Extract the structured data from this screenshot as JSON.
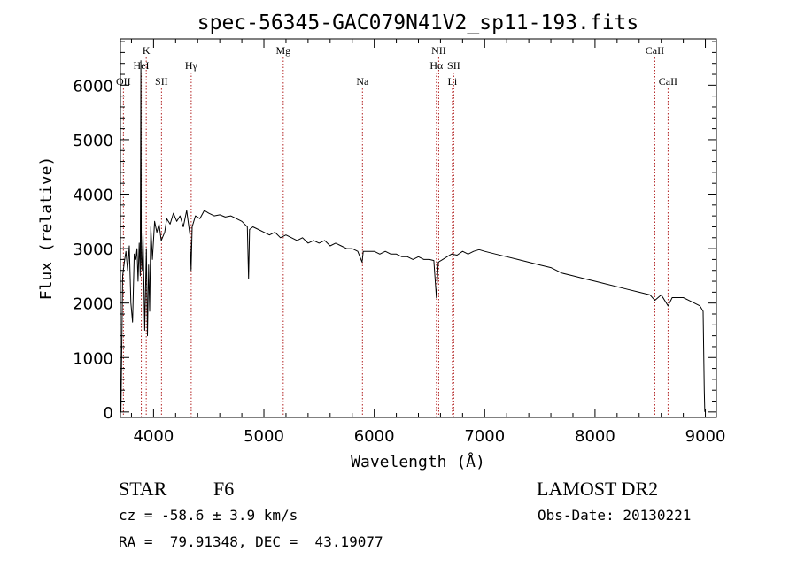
{
  "chart_data": {
    "type": "line",
    "title": "spec-56345-GAC079N41V2_sp11-193.fits",
    "xlabel": "Wavelength (Å)",
    "ylabel": "Flux (relative)",
    "xlim": [
      3700,
      9100
    ],
    "ylim": [
      -100,
      6850
    ],
    "xticks": [
      4000,
      5000,
      6000,
      7000,
      8000,
      9000
    ],
    "yticks": [
      0,
      1000,
      2000,
      3000,
      4000,
      5000,
      6000
    ],
    "grid": false,
    "series": [
      {
        "x": [
          3700,
          3705,
          3720,
          3735,
          3750,
          3765,
          3780,
          3795,
          3810,
          3825,
          3840,
          3850,
          3860,
          3870,
          3880,
          3885,
          3889,
          3895,
          3905,
          3920,
          3935,
          3945,
          3955,
          3965,
          3975,
          3990,
          4010,
          4030,
          4050,
          4070,
          4101,
          4120,
          4150,
          4180,
          4210,
          4240,
          4270,
          4300,
          4330,
          4340,
          4350,
          4380,
          4420,
          4460,
          4500,
          4550,
          4600,
          4650,
          4700,
          4750,
          4800,
          4850,
          4861,
          4870,
          4900,
          4950,
          5000,
          5050,
          5100,
          5150,
          5200,
          5250,
          5300,
          5350,
          5400,
          5450,
          5500,
          5550,
          5600,
          5650,
          5700,
          5750,
          5800,
          5850,
          5890,
          5900,
          5950,
          6000,
          6050,
          6100,
          6150,
          6200,
          6250,
          6300,
          6350,
          6400,
          6450,
          6500,
          6540,
          6563,
          6580,
          6620,
          6660,
          6700,
          6750,
          6800,
          6850,
          6900,
          6950,
          7000,
          7100,
          7200,
          7300,
          7400,
          7500,
          7600,
          7700,
          7800,
          7900,
          8000,
          8100,
          8200,
          8300,
          8400,
          8498,
          8542,
          8600,
          8662,
          8700,
          8800,
          8850,
          8900,
          8950,
          8980,
          8990,
          8995
        ],
        "y": [
          200,
          0,
          2500,
          2750,
          2950,
          2600,
          3050,
          2000,
          1650,
          2900,
          2800,
          3000,
          2400,
          3100,
          2500,
          6450,
          2800,
          2600,
          3300,
          1500,
          3000,
          1400,
          2700,
          1850,
          3400,
          2800,
          3500,
          3300,
          3450,
          3150,
          3300,
          3550,
          3450,
          3650,
          3500,
          3600,
          3400,
          3700,
          3250,
          2600,
          3400,
          3600,
          3550,
          3700,
          3650,
          3600,
          3620,
          3580,
          3600,
          3550,
          3500,
          3400,
          2450,
          3350,
          3400,
          3350,
          3300,
          3250,
          3300,
          3200,
          3250,
          3200,
          3150,
          3200,
          3100,
          3150,
          3100,
          3150,
          3050,
          3100,
          3050,
          3000,
          3000,
          2950,
          2750,
          2950,
          2950,
          2950,
          2900,
          2950,
          2900,
          2900,
          2850,
          2850,
          2800,
          2850,
          2800,
          2800,
          2780,
          2100,
          2750,
          2800,
          2850,
          2900,
          2880,
          2950,
          2900,
          2950,
          2980,
          2950,
          2900,
          2850,
          2800,
          2750,
          2700,
          2650,
          2550,
          2500,
          2450,
          2400,
          2350,
          2300,
          2250,
          2200,
          2150,
          2050,
          2150,
          1950,
          2100,
          2100,
          2050,
          2000,
          1950,
          1850,
          400,
          0
        ]
      }
    ],
    "line_markers": [
      {
        "name": "OII",
        "x": 3727,
        "row": 3
      },
      {
        "name": "K",
        "x": 3934,
        "row": 1
      },
      {
        "name": "HeI",
        "x": 3889,
        "row": 2
      },
      {
        "name": "SII",
        "x": 4072,
        "row": 3
      },
      {
        "name": "Hγ",
        "x": 4341,
        "row": 2
      },
      {
        "name": "Mg",
        "x": 5175,
        "row": 1
      },
      {
        "name": "Na",
        "x": 5893,
        "row": 3
      },
      {
        "name": "NII",
        "x": 6584,
        "row": 1
      },
      {
        "name": "Hα",
        "x": 6563,
        "row": 2
      },
      {
        "name": "SII",
        "x": 6720,
        "row": 2
      },
      {
        "name": "Li",
        "x": 6708,
        "row": 3
      },
      {
        "name": "CaII",
        "x": 8542,
        "row": 1
      },
      {
        "name": "CaII",
        "x": 8662,
        "row": 3
      }
    ]
  },
  "info": {
    "object_class": "STAR",
    "subclass": "F6",
    "survey": "LAMOST DR2",
    "redshift": "cz = -58.6 ± 3.9 km/s",
    "obs_date": "Obs-Date: 20130221",
    "coords": "RA =  79.91348, DEC =  43.19077"
  }
}
